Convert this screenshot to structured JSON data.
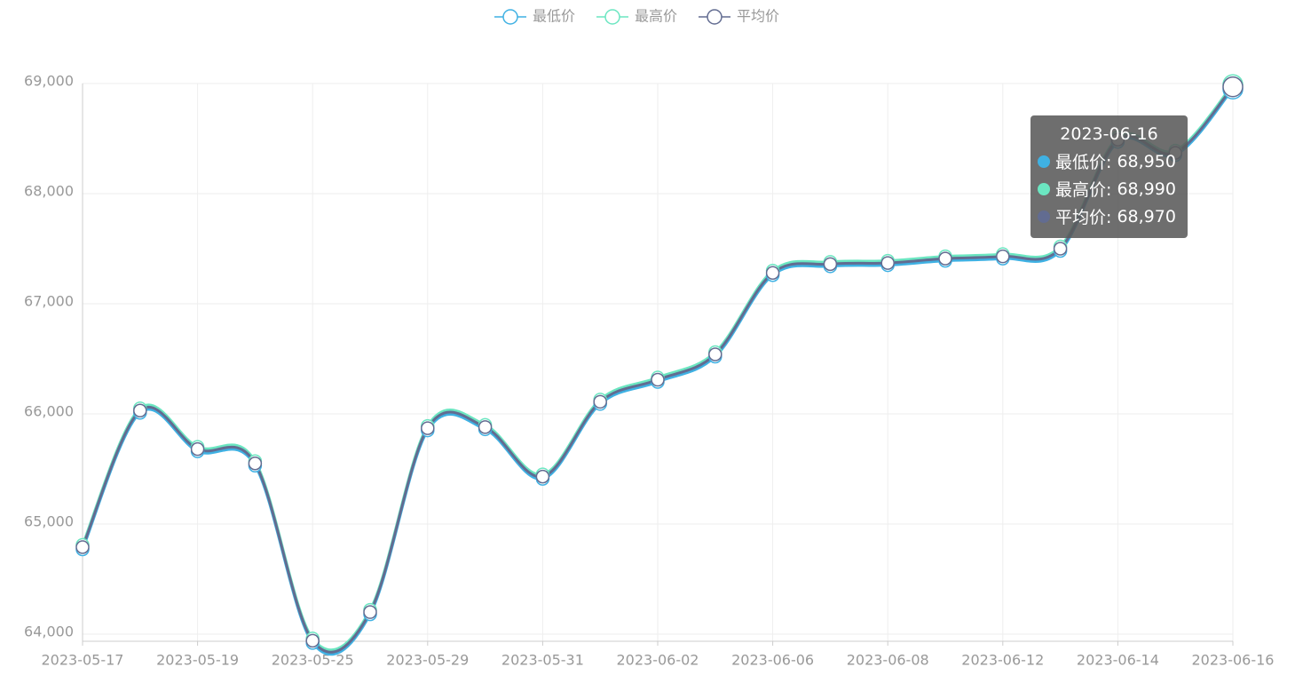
{
  "chart_data": {
    "type": "line",
    "categories": [
      "2023-05-17",
      null,
      "2023-05-19",
      null,
      "2023-05-25",
      null,
      "2023-05-29",
      null,
      "2023-05-31",
      null,
      "2023-06-02",
      null,
      "2023-06-06",
      null,
      "2023-06-08",
      null,
      "2023-06-12",
      null,
      "2023-06-14",
      null,
      "2023-06-16"
    ],
    "series": [
      {
        "name": "最低价",
        "color": "#3fb1e3",
        "values": [
          64770,
          66010,
          65660,
          65530,
          63920,
          64180,
          65850,
          65860,
          65410,
          66090,
          66290,
          66520,
          67260,
          67340,
          67350,
          67390,
          67410,
          67480,
          68470,
          68350,
          68950
        ]
      },
      {
        "name": "最高价",
        "color": "#6be6c1",
        "values": [
          64810,
          66050,
          65700,
          65570,
          63960,
          64220,
          65890,
          65900,
          65450,
          66130,
          66330,
          66560,
          67300,
          67380,
          67390,
          67430,
          67450,
          67520,
          68510,
          68390,
          68990
        ]
      },
      {
        "name": "平均价",
        "color": "#626c91",
        "values": [
          64790,
          66030,
          65680,
          65550,
          63940,
          64200,
          65870,
          65880,
          65430,
          66110,
          66310,
          66540,
          67280,
          67360,
          67370,
          67410,
          67430,
          67500,
          68490,
          68370,
          68970
        ]
      }
    ],
    "ylim": [
      63935,
      69000
    ],
    "yticks": [
      {
        "value": 64000,
        "label": "64,000"
      },
      {
        "value": 65000,
        "label": "65,000"
      },
      {
        "value": 66000,
        "label": "66,000"
      },
      {
        "value": 67000,
        "label": "67,000"
      },
      {
        "value": 68000,
        "label": "68,000"
      },
      {
        "value": 69000,
        "label": "69,000"
      }
    ],
    "grid": true,
    "legend": "top",
    "smooth": true,
    "tooltip": {
      "index": 20,
      "value_labels": [
        "68,950",
        "68,990",
        "68,970"
      ]
    }
  }
}
